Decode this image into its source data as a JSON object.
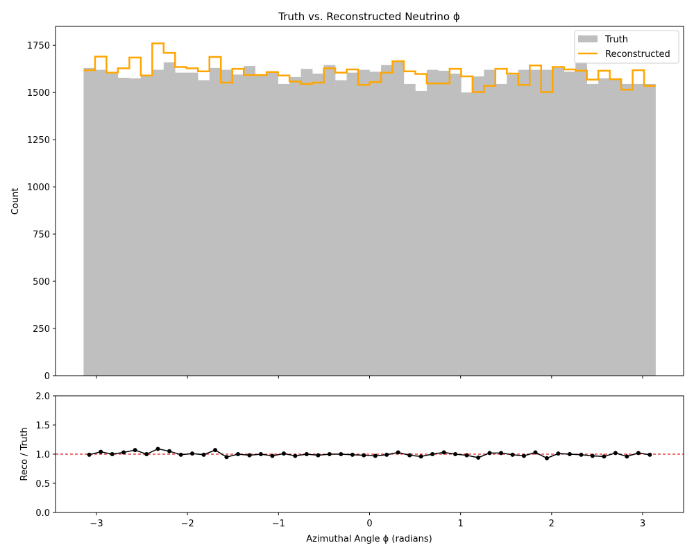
{
  "chart_data": [
    {
      "type": "histogram",
      "title": "Truth vs. Reconstructed Neutrino ϕ",
      "xlabel": "",
      "ylabel": "Count",
      "xlim": [
        -3.45,
        3.45
      ],
      "ylim": [
        0,
        1850
      ],
      "yticks": [
        0,
        250,
        500,
        750,
        1000,
        1250,
        1500,
        1750
      ],
      "xticks": [
        -3,
        -2,
        -1,
        0,
        1,
        2,
        3
      ],
      "grid": false,
      "legend_position": "top-right",
      "bin_range": [
        -3.1416,
        3.1416
      ],
      "bins": 50,
      "series": [
        {
          "name": "Truth",
          "style": "filled",
          "color": "#bfbfbf",
          "values": [
            1630,
            1620,
            1600,
            1578,
            1575,
            1590,
            1620,
            1660,
            1605,
            1605,
            1565,
            1630,
            1620,
            1595,
            1640,
            1590,
            1608,
            1545,
            1582,
            1625,
            1600,
            1645,
            1565,
            1605,
            1620,
            1610,
            1645,
            1662,
            1545,
            1508,
            1620,
            1615,
            1600,
            1500,
            1585,
            1620,
            1545,
            1595,
            1620,
            1620,
            1620,
            1630,
            1610,
            1662,
            1545,
            1575,
            1575,
            1545,
            1545,
            1545
          ]
        },
        {
          "name": "Reconstructed",
          "style": "step",
          "color": "#ffa500",
          "values": [
            1618,
            1690,
            1605,
            1628,
            1685,
            1590,
            1760,
            1710,
            1635,
            1628,
            1612,
            1688,
            1552,
            1625,
            1592,
            1592,
            1608,
            1590,
            1558,
            1545,
            1552,
            1628,
            1605,
            1622,
            1540,
            1555,
            1605,
            1665,
            1612,
            1598,
            1548,
            1548,
            1625,
            1585,
            1502,
            1535,
            1625,
            1600,
            1540,
            1643,
            1502,
            1635,
            1622,
            1615,
            1568,
            1615,
            1570,
            1515,
            1618,
            1535
          ]
        }
      ]
    },
    {
      "type": "line",
      "title": "",
      "xlabel": "Azimuthal Angle ϕ (radians)",
      "ylabel": "Reco / Truth",
      "xlim": [
        -3.45,
        3.45
      ],
      "ylim": [
        0,
        2
      ],
      "yticks": [
        "0.0",
        "0.5",
        "1.0",
        "1.5",
        "2.0"
      ],
      "xticks": [
        "−3",
        "−2",
        "−1",
        "0",
        "1",
        "2",
        "3"
      ],
      "grid": false,
      "reference_line": {
        "y": 1.0,
        "color": "#e31a1c",
        "style": "dashed"
      },
      "series": [
        {
          "name": "",
          "color": "#000000",
          "x": [
            -3.079,
            -2.953,
            -2.827,
            -2.702,
            -2.576,
            -2.45,
            -2.325,
            -2.199,
            -2.073,
            -1.948,
            -1.822,
            -1.696,
            -1.571,
            -1.445,
            -1.319,
            -1.194,
            -1.068,
            -0.942,
            -0.817,
            -0.691,
            -0.565,
            -0.44,
            -0.314,
            -0.188,
            -0.063,
            0.063,
            0.188,
            0.314,
            0.44,
            0.565,
            0.691,
            0.817,
            0.942,
            1.068,
            1.194,
            1.319,
            1.445,
            1.571,
            1.696,
            1.822,
            1.948,
            2.073,
            2.199,
            2.325,
            2.45,
            2.576,
            2.702,
            2.827,
            2.953,
            3.079
          ],
          "y": [
            0.99,
            1.04,
            1.0,
            1.03,
            1.07,
            1.0,
            1.09,
            1.05,
            0.99,
            1.01,
            0.99,
            1.07,
            0.95,
            1.0,
            0.98,
            1.0,
            0.97,
            1.01,
            0.97,
            1.0,
            0.98,
            1.0,
            1.0,
            0.99,
            0.98,
            0.97,
            0.99,
            1.03,
            0.98,
            0.96,
            1.0,
            1.03,
            1.0,
            0.98,
            0.94,
            1.02,
            1.02,
            0.99,
            0.97,
            1.03,
            0.93,
            1.01,
            1.0,
            0.99,
            0.97,
            0.96,
            1.02,
            0.96,
            1.02,
            0.99
          ]
        }
      ]
    }
  ]
}
